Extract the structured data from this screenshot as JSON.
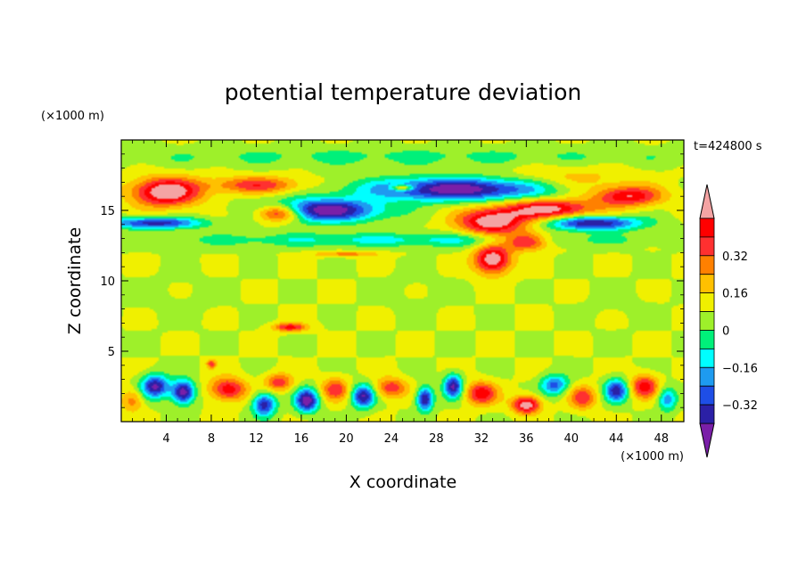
{
  "chart_data": {
    "type": "heatmap",
    "title": "potential temperature deviation",
    "xlabel": "X coordinate",
    "ylabel": "Z coordinate",
    "x_unit": "(×1000 m)",
    "y_unit": "(×1000 m)",
    "time_label": "t=424800 s",
    "xlim": [
      0,
      50
    ],
    "ylim": [
      0,
      20
    ],
    "x_ticks": [
      4,
      8,
      12,
      16,
      20,
      24,
      28,
      32,
      36,
      40,
      44,
      48
    ],
    "y_ticks": [
      5,
      10,
      15
    ],
    "x_tick_labels": [
      "4",
      "8",
      "12",
      "16",
      "20",
      "24",
      "28",
      "32",
      "36",
      "40",
      "44",
      "48"
    ],
    "y_tick_labels": [
      "5",
      "10",
      "15"
    ],
    "colorbar": {
      "levels": [
        -0.48,
        -0.4,
        -0.32,
        -0.24,
        -0.16,
        -0.08,
        0,
        0.08,
        0.16,
        0.24,
        0.32,
        0.4,
        0.48
      ],
      "labeled_levels": [
        "0.32",
        "0.16",
        "0",
        "−0.16",
        "−0.32"
      ],
      "colors": [
        "#7a1fa8",
        "#2b20a6",
        "#1e4ee6",
        "#1e9bf0",
        "#00ffff",
        "#00f07a",
        "#9ef02a",
        "#f0f000",
        "#ffc000",
        "#ff8000",
        "#ff3030",
        "#ff0000",
        "#f4a3a3"
      ]
    },
    "field": {
      "background": 0.04,
      "blobs": [
        {
          "x": 25,
          "z": 18.8,
          "sx": 30,
          "sz": 0.7,
          "v": -0.1
        },
        {
          "x": 4,
          "z": 16.3,
          "sx": 3,
          "sz": 1.0,
          "v": 0.52
        },
        {
          "x": 12,
          "z": 16.8,
          "sx": 4,
          "sz": 0.6,
          "v": 0.3
        },
        {
          "x": 14,
          "z": 14.8,
          "sx": 2,
          "sz": 0.6,
          "v": 0.5
        },
        {
          "x": 3,
          "z": 14.1,
          "sx": 4,
          "sz": 0.4,
          "v": -0.45
        },
        {
          "x": 18,
          "z": 15,
          "sx": 5,
          "sz": 0.8,
          "v": -0.55
        },
        {
          "x": 30,
          "z": 16.5,
          "sx": 8,
          "sz": 0.8,
          "v": -0.55
        },
        {
          "x": 42,
          "z": 14.1,
          "sx": 4,
          "sz": 0.5,
          "v": -0.5
        },
        {
          "x": 33,
          "z": 14.2,
          "sx": 3,
          "sz": 0.9,
          "v": 0.5
        },
        {
          "x": 38,
          "z": 15.1,
          "sx": 4,
          "sz": 0.7,
          "v": 0.45
        },
        {
          "x": 45,
          "z": 16,
          "sx": 3,
          "sz": 0.7,
          "v": 0.4
        },
        {
          "x": 33,
          "z": 11.5,
          "sx": 1.6,
          "sz": 1.0,
          "v": 0.5
        },
        {
          "x": 36,
          "z": 12.8,
          "sx": 2,
          "sz": 0.6,
          "v": 0.45
        },
        {
          "x": 25,
          "z": 12.9,
          "sx": 20,
          "sz": 0.5,
          "v": -0.18
        },
        {
          "x": 20,
          "z": 11.9,
          "sx": 3,
          "sz": 0.2,
          "v": 0.2
        },
        {
          "x": 25,
          "z": 16.6,
          "sx": 1,
          "sz": 0.2,
          "v": 0.4
        },
        {
          "x": 15,
          "z": 6.7,
          "sx": 1.5,
          "sz": 0.3,
          "v": 0.35
        },
        {
          "x": 8,
          "z": 4.1,
          "sx": 0.4,
          "sz": 0.3,
          "v": 0.3
        },
        {
          "x": 5,
          "z": 8.8,
          "sx": 4,
          "sz": 1.6,
          "v": -0.02
        },
        {
          "x": 26,
          "z": 9.2,
          "sx": 3,
          "sz": 1.4,
          "v": -0.02
        },
        {
          "x": 44,
          "z": 8.4,
          "sx": 3,
          "sz": 1.3,
          "v": -0.02
        },
        {
          "x": 40,
          "z": 17.2,
          "sx": 6,
          "sz": 1.0,
          "v": 0.12
        },
        {
          "x": 3,
          "z": 2.5,
          "sx": 1.2,
          "sz": 0.8,
          "v": -0.5
        },
        {
          "x": 5.5,
          "z": 2.1,
          "sx": 1.0,
          "sz": 0.8,
          "v": -0.55
        },
        {
          "x": 9.5,
          "z": 2.3,
          "sx": 1.6,
          "sz": 0.8,
          "v": 0.38
        },
        {
          "x": 12.7,
          "z": 1.2,
          "sx": 1.0,
          "sz": 0.8,
          "v": -0.45
        },
        {
          "x": 14,
          "z": 2.8,
          "sx": 1.2,
          "sz": 0.6,
          "v": 0.3
        },
        {
          "x": 16.5,
          "z": 1.5,
          "sx": 1.0,
          "sz": 0.8,
          "v": -0.55
        },
        {
          "x": 19,
          "z": 2.3,
          "sx": 1.2,
          "sz": 0.8,
          "v": 0.3
        },
        {
          "x": 21.5,
          "z": 1.8,
          "sx": 1.0,
          "sz": 0.8,
          "v": -0.48
        },
        {
          "x": 24,
          "z": 2.4,
          "sx": 1.4,
          "sz": 0.7,
          "v": 0.3
        },
        {
          "x": 27,
          "z": 1.6,
          "sx": 0.7,
          "sz": 0.8,
          "v": -0.5
        },
        {
          "x": 29.5,
          "z": 2.5,
          "sx": 0.8,
          "sz": 0.8,
          "v": -0.5
        },
        {
          "x": 32,
          "z": 2.0,
          "sx": 1.4,
          "sz": 0.8,
          "v": 0.38
        },
        {
          "x": 36,
          "z": 1.2,
          "sx": 1.2,
          "sz": 0.6,
          "v": 0.5
        },
        {
          "x": 38.5,
          "z": 2.6,
          "sx": 1.2,
          "sz": 0.7,
          "v": -0.35
        },
        {
          "x": 41,
          "z": 1.7,
          "sx": 1.2,
          "sz": 0.8,
          "v": 0.3
        },
        {
          "x": 44,
          "z": 2.2,
          "sx": 1.0,
          "sz": 0.8,
          "v": -0.45
        },
        {
          "x": 46.5,
          "z": 2.5,
          "sx": 1.2,
          "sz": 0.8,
          "v": 0.38
        },
        {
          "x": 48.5,
          "z": 1.6,
          "sx": 0.8,
          "sz": 0.8,
          "v": -0.3
        },
        {
          "x": 1,
          "z": 1.5,
          "sx": 1.0,
          "sz": 0.8,
          "v": 0.2
        }
      ]
    }
  }
}
